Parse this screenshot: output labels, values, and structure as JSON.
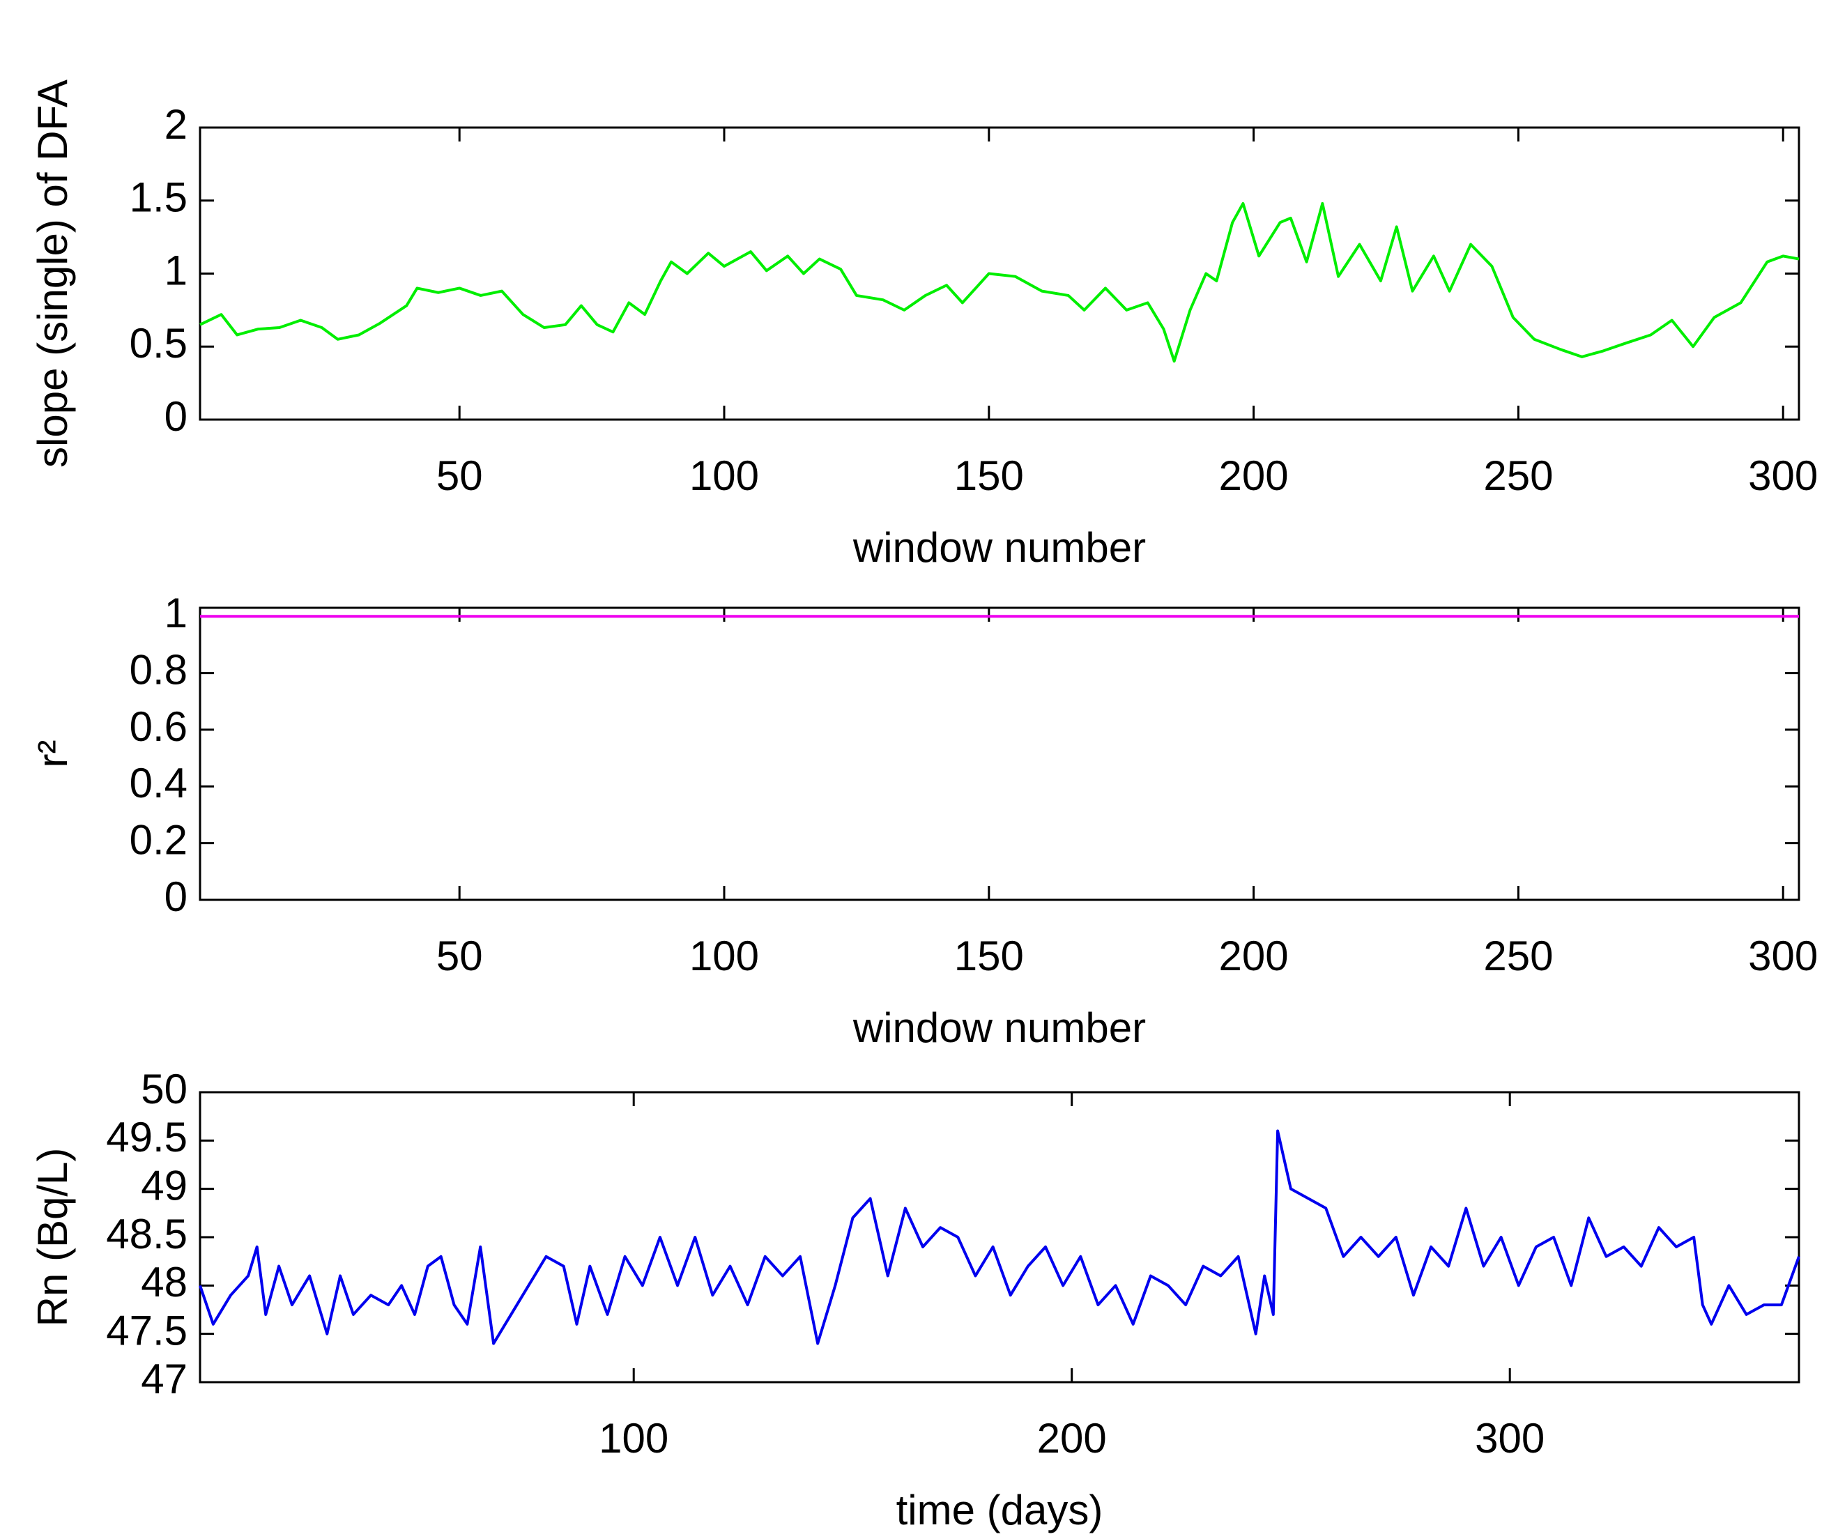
{
  "chart_data": [
    {
      "type": "line",
      "xlabel": "window number",
      "ylabel": "slope (single) of DFA",
      "xlim": [
        1,
        303
      ],
      "xticks": [
        50,
        100,
        150,
        200,
        250,
        300
      ],
      "ylim": [
        0,
        2
      ],
      "yticks": [
        0,
        0.5,
        1,
        1.5,
        2
      ],
      "series": [
        {
          "color": "#00ee00",
          "x": [
            1,
            5,
            8,
            12,
            16,
            20,
            24,
            27,
            31,
            35,
            40,
            42,
            46,
            50,
            54,
            58,
            62,
            66,
            70,
            73,
            76,
            79,
            82,
            85,
            88,
            90,
            93,
            97,
            100,
            105,
            108,
            112,
            115,
            118,
            122,
            125,
            130,
            134,
            138,
            142,
            145,
            150,
            155,
            160,
            165,
            168,
            172,
            176,
            180,
            183,
            185,
            188,
            191,
            193,
            196,
            198,
            201,
            205,
            207,
            210,
            213,
            216,
            220,
            224,
            227,
            230,
            234,
            237,
            241,
            245,
            249,
            253,
            258,
            262,
            266,
            270,
            275,
            279,
            283,
            287,
            292,
            297,
            300,
            303
          ],
          "values": [
            0.65,
            0.72,
            0.58,
            0.62,
            0.63,
            0.68,
            0.63,
            0.55,
            0.58,
            0.66,
            0.78,
            0.9,
            0.87,
            0.9,
            0.85,
            0.88,
            0.72,
            0.63,
            0.65,
            0.78,
            0.65,
            0.6,
            0.8,
            0.72,
            0.95,
            1.08,
            1.0,
            1.14,
            1.05,
            1.15,
            1.02,
            1.12,
            1.0,
            1.1,
            1.03,
            0.85,
            0.82,
            0.75,
            0.85,
            0.92,
            0.8,
            1.0,
            0.98,
            0.88,
            0.85,
            0.75,
            0.9,
            0.75,
            0.8,
            0.62,
            0.4,
            0.75,
            1.0,
            0.95,
            1.35,
            1.48,
            1.12,
            1.35,
            1.38,
            1.08,
            1.48,
            0.98,
            1.2,
            0.95,
            1.32,
            0.88,
            1.12,
            0.88,
            1.2,
            1.05,
            0.7,
            0.55,
            0.48,
            0.43,
            0.47,
            0.52,
            0.58,
            0.68,
            0.5,
            0.7,
            0.8,
            1.08,
            1.12,
            1.1
          ]
        }
      ]
    },
    {
      "type": "line",
      "xlabel": "window number",
      "ylabel": "r²",
      "xlim": [
        1,
        303
      ],
      "xticks": [
        50,
        100,
        150,
        200,
        250,
        300
      ],
      "ylim": [
        0,
        1.03
      ],
      "yticks": [
        0,
        0.2,
        0.4,
        0.6,
        0.8,
        1
      ],
      "series": [
        {
          "color": "#ee00ee",
          "x": [
            1,
            303
          ],
          "values": [
            1,
            1
          ]
        }
      ]
    },
    {
      "type": "line",
      "xlabel": "time (days)",
      "ylabel": "Rn (Bq/L)",
      "xlim": [
        1,
        366
      ],
      "xticks": [
        100,
        200,
        300
      ],
      "ylim": [
        47,
        50
      ],
      "yticks": [
        47,
        47.5,
        48,
        48.5,
        49,
        49.5,
        50
      ],
      "series": [
        {
          "color": "#0000ee",
          "x": [
            1,
            4,
            8,
            12,
            14,
            16,
            19,
            22,
            26,
            30,
            33,
            36,
            40,
            44,
            47,
            50,
            53,
            56,
            59,
            62,
            65,
            68,
            72,
            76,
            80,
            84,
            87,
            90,
            94,
            98,
            102,
            106,
            110,
            114,
            118,
            122,
            126,
            130,
            134,
            138,
            142,
            146,
            150,
            154,
            158,
            162,
            166,
            170,
            174,
            178,
            182,
            186,
            190,
            194,
            198,
            202,
            206,
            210,
            214,
            218,
            222,
            226,
            230,
            234,
            238,
            242,
            244,
            246,
            247,
            250,
            254,
            258,
            262,
            266,
            270,
            274,
            278,
            282,
            286,
            290,
            294,
            298,
            302,
            306,
            310,
            314,
            318,
            322,
            326,
            330,
            334,
            338,
            342,
            344,
            346,
            350,
            354,
            358,
            362,
            366
          ],
          "values": [
            48.0,
            47.6,
            47.9,
            48.1,
            48.4,
            47.7,
            48.2,
            47.8,
            48.1,
            47.5,
            48.1,
            47.7,
            47.9,
            47.8,
            48.0,
            47.7,
            48.2,
            48.3,
            47.8,
            47.6,
            48.4,
            47.4,
            47.7,
            48.0,
            48.3,
            48.2,
            47.6,
            48.2,
            47.7,
            48.3,
            48.0,
            48.5,
            48.0,
            48.5,
            47.9,
            48.2,
            47.8,
            48.3,
            48.1,
            48.3,
            47.4,
            48.0,
            48.7,
            48.9,
            48.1,
            48.8,
            48.4,
            48.6,
            48.5,
            48.1,
            48.4,
            47.9,
            48.2,
            48.4,
            48.0,
            48.3,
            47.8,
            48.0,
            47.6,
            48.1,
            48.0,
            47.8,
            48.2,
            48.1,
            48.3,
            47.5,
            48.1,
            47.7,
            49.6,
            49.0,
            48.9,
            48.8,
            48.3,
            48.5,
            48.3,
            48.5,
            47.9,
            48.4,
            48.2,
            48.8,
            48.2,
            48.5,
            48.0,
            48.4,
            48.5,
            48.0,
            48.7,
            48.3,
            48.4,
            48.2,
            48.6,
            48.4,
            48.5,
            47.8,
            47.6,
            48.0,
            47.7,
            47.8,
            47.8,
            48.3
          ]
        }
      ]
    }
  ]
}
